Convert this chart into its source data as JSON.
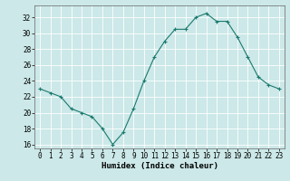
{
  "x": [
    0,
    1,
    2,
    3,
    4,
    5,
    6,
    7,
    8,
    9,
    10,
    11,
    12,
    13,
    14,
    15,
    16,
    17,
    18,
    19,
    20,
    21,
    22,
    23
  ],
  "y": [
    23,
    22.5,
    22,
    20.5,
    20,
    19.5,
    18,
    16,
    17.5,
    20.5,
    24,
    27,
    29,
    30.5,
    30.5,
    32,
    32.5,
    31.5,
    31.5,
    29.5,
    27,
    24.5,
    23.5,
    23
  ],
  "line_color": "#1a7a6e",
  "marker": "+",
  "marker_size": 3,
  "marker_lw": 0.8,
  "line_width": 0.8,
  "bg_color": "#cce8e8",
  "grid_color": "#ffffff",
  "xlabel": "Humidex (Indice chaleur)",
  "ylim": [
    15.5,
    33.5
  ],
  "xlim": [
    -0.5,
    23.5
  ],
  "yticks": [
    16,
    18,
    20,
    22,
    24,
    26,
    28,
    30,
    32
  ],
  "xticks": [
    0,
    1,
    2,
    3,
    4,
    5,
    6,
    7,
    8,
    9,
    10,
    11,
    12,
    13,
    14,
    15,
    16,
    17,
    18,
    19,
    20,
    21,
    22,
    23
  ],
  "xlabel_fontsize": 6.5,
  "tick_fontsize": 5.5
}
